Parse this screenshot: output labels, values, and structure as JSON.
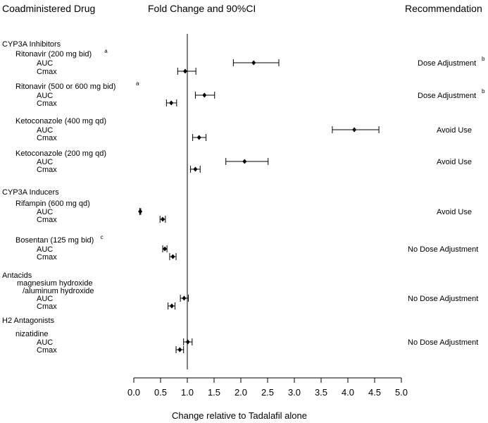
{
  "headers": {
    "drug": "Coadministered Drug",
    "fold": "Fold Change and 90%CI",
    "rec": "Recommendation"
  },
  "chart_data": {
    "type": "forest",
    "xlabel": "Change relative to Tadalafil alone",
    "xlim": [
      0.0,
      5.0
    ],
    "xticks": [
      "0.0",
      "0.5",
      "1.0",
      "1.5",
      "2.0",
      "2.5",
      "3.0",
      "3.5",
      "4.0",
      "4.5",
      "5.0"
    ],
    "reference_line": 1.0,
    "groups": [
      {
        "group": "CYP3A Inhibitors",
        "drugs": [
          {
            "name": "Ritonavir (200 mg bid)",
            "footnote": "a",
            "recommendation": "Dose Adjustment",
            "rec_footnote": "b",
            "metrics": [
              {
                "label": "AUC",
                "value": 2.24,
                "low": 1.86,
                "high": 2.71
              },
              {
                "label": "Cmax",
                "value": 0.96,
                "low": 0.82,
                "high": 1.16
              }
            ]
          },
          {
            "name": "Ritonavir (500 or 600  mg bid)",
            "footnote": "a",
            "recommendation": "Dose Adjustment",
            "rec_footnote": "b",
            "metrics": [
              {
                "label": "AUC",
                "value": 1.32,
                "low": 1.15,
                "high": 1.51
              },
              {
                "label": "Cmax",
                "value": 0.7,
                "low": 0.61,
                "high": 0.8
              }
            ]
          },
          {
            "name": "Ketoconazole (400 mg qd)",
            "footnote": "",
            "recommendation": "Avoid Use",
            "rec_footnote": "",
            "metrics": [
              {
                "label": "AUC",
                "value": 4.12,
                "low": 3.71,
                "high": 4.58
              },
              {
                "label": "Cmax",
                "value": 1.22,
                "low": 1.1,
                "high": 1.35
              }
            ]
          },
          {
            "name": "Ketoconazole (200 mg qd)",
            "footnote": "",
            "recommendation": "Avoid Use",
            "rec_footnote": "",
            "metrics": [
              {
                "label": "AUC",
                "value": 2.07,
                "low": 1.72,
                "high": 2.51
              },
              {
                "label": "Cmax",
                "value": 1.15,
                "low": 1.06,
                "high": 1.24
              }
            ]
          }
        ]
      },
      {
        "group": "CYP3A Inducers",
        "drugs": [
          {
            "name": "Rifampin (600 mg qd)",
            "footnote": "",
            "recommendation": "Avoid Use",
            "rec_footnote": "",
            "metrics": [
              {
                "label": "AUC",
                "value": 0.12,
                "low": 0.11,
                "high": 0.13
              },
              {
                "label": "Cmax",
                "value": 0.54,
                "low": 0.49,
                "high": 0.59
              }
            ]
          },
          {
            "name": "Bosentan (125 mg bid)",
            "footnote": "c",
            "recommendation": "No Dose Adjustment",
            "rec_footnote": "",
            "metrics": [
              {
                "label": "AUC",
                "value": 0.58,
                "low": 0.54,
                "high": 0.62
              },
              {
                "label": "Cmax",
                "value": 0.73,
                "low": 0.67,
                "high": 0.79
              }
            ]
          }
        ]
      },
      {
        "group": "Antacids",
        "drugs": [
          {
            "name": "magnesium hydroxide",
            "name2": "/aluminum hydroxide",
            "footnote": "",
            "recommendation": "No Dose Adjustment",
            "rec_footnote": "",
            "metrics": [
              {
                "label": "AUC",
                "value": 0.94,
                "low": 0.87,
                "high": 1.02
              },
              {
                "label": "Cmax",
                "value": 0.71,
                "low": 0.64,
                "high": 0.77
              }
            ]
          }
        ]
      },
      {
        "group": "H2 Antagonists",
        "drugs": [
          {
            "name": "nizatidine",
            "footnote": "",
            "recommendation": "No Dose Adjustment",
            "rec_footnote": "",
            "metrics": [
              {
                "label": "AUC",
                "value": 1.01,
                "low": 0.93,
                "high": 1.09
              },
              {
                "label": "Cmax",
                "value": 0.86,
                "low": 0.79,
                "high": 0.93
              }
            ]
          }
        ]
      }
    ]
  }
}
